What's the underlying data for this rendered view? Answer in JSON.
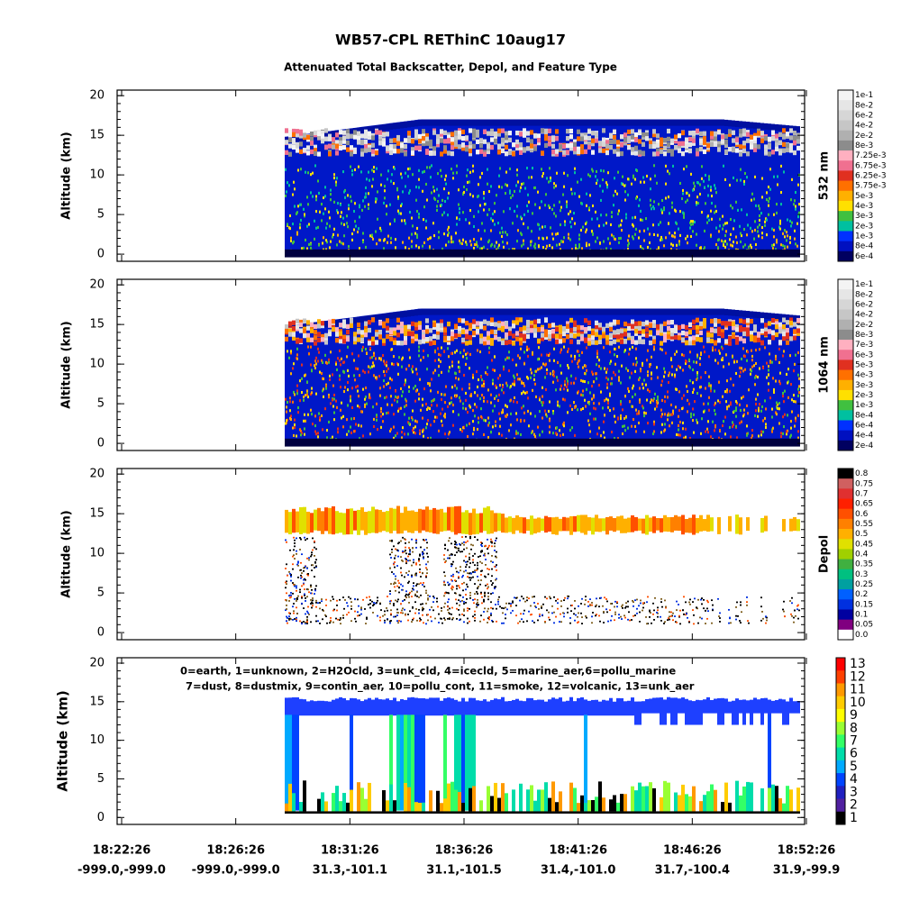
{
  "title": "WB57-CPL REThinC 10aug17",
  "subtitle": "Attenuated Total Backscatter, Depol, and Feature Type",
  "panels": [
    {
      "ylabel": "Altitude (km)",
      "ylim": [
        -0.9,
        20.7
      ],
      "yticks": [
        0,
        5,
        10,
        15,
        20
      ],
      "colorbar": {
        "label": "532 nm",
        "ticks": [
          "1e-1",
          "8e-2",
          "6e-2",
          "4e-2",
          "2e-2",
          "8e-3",
          "7.25e-3",
          "6.75e-3",
          "6.25e-3",
          "5.75e-3",
          "5e-3",
          "4e-3",
          "3e-3",
          "2e-3",
          "1e-3",
          "8e-4",
          "6e-4"
        ],
        "colors": [
          "#f4f4f4",
          "#e6e6e6",
          "#d6d6d6",
          "#c6c6c6",
          "#b0b0b0",
          "#8c8c8c",
          "#ffb0c0",
          "#f07090",
          "#e03020",
          "#ff7000",
          "#ffb000",
          "#ffe000",
          "#40c040",
          "#00c0a0",
          "#0030ff",
          "#0010c0",
          "#000060"
        ]
      }
    },
    {
      "ylabel": "Altitude (km)",
      "ylim": [
        -0.9,
        20.7
      ],
      "yticks": [
        0,
        5,
        10,
        15,
        20
      ],
      "colorbar": {
        "label": "1064 nm",
        "ticks": [
          "1e-1",
          "8e-2",
          "6e-2",
          "4e-2",
          "2e-2",
          "8e-3",
          "7e-3",
          "6e-3",
          "5e-3",
          "4e-3",
          "3e-3",
          "2e-3",
          "1e-3",
          "8e-4",
          "6e-4",
          "4e-4",
          "2e-4"
        ],
        "colors": [
          "#f4f4f4",
          "#e6e6e6",
          "#d6d6d6",
          "#c6c6c6",
          "#b0b0b0",
          "#8c8c8c",
          "#ffb0c0",
          "#f07090",
          "#e03020",
          "#ff7000",
          "#ffb000",
          "#ffe000",
          "#40c040",
          "#00c0a0",
          "#0030ff",
          "#0010c0",
          "#000060"
        ]
      }
    },
    {
      "ylabel": "Altitude (km)",
      "ylim": [
        -0.9,
        20.7
      ],
      "yticks": [
        0,
        5,
        10,
        15,
        20
      ],
      "colorbar": {
        "label": "Depol",
        "ticks": [
          "0.8",
          "0.75",
          "0.7",
          "0.65",
          "0.6",
          "0.55",
          "0.5",
          "0.45",
          "0.4",
          "0.35",
          "0.3",
          "0.25",
          "0.2",
          "0.15",
          "0.1",
          "0.05",
          "0.0"
        ],
        "colors": [
          "#000000",
          "#d06060",
          "#e03030",
          "#ff2000",
          "#ff5000",
          "#ff8000",
          "#ffb000",
          "#e0e000",
          "#a0d000",
          "#40b040",
          "#00c080",
          "#00a0a0",
          "#0060ff",
          "#0030e0",
          "#0000a0",
          "#800080",
          "#ffffff"
        ]
      }
    },
    {
      "ylabel": "Altitude (km)",
      "ylim": [
        -0.9,
        20.7
      ],
      "yticks": [
        0,
        5,
        10,
        15,
        20
      ],
      "legend": [
        "0=earth, 1=unknown, 2=H2Ocld, 3=unk_cld, 4=icecld, 5=marine_aer,6=pollu_marine",
        "7=dust, 8=dustmix, 9=contin_aer, 10=pollu_cont, 11=smoke, 12=volcanic, 13=unk_aer"
      ],
      "colorbar": {
        "ticks": [
          13,
          12,
          11,
          10,
          9,
          8,
          7,
          6,
          5,
          4,
          3,
          2,
          1
        ],
        "colors": [
          "#ff0000",
          "#ff4000",
          "#ff9900",
          "#ffcc00",
          "#ffff00",
          "#99ff33",
          "#33ff66",
          "#00ddaa",
          "#00aaff",
          "#0044ff",
          "#2020c0",
          "#5020a0",
          "#000000"
        ]
      }
    }
  ],
  "x_axis": {
    "ticks": [
      {
        "time": "18:22:26",
        "location": "-999.0,-999.0"
      },
      {
        "time": "18:26:26",
        "location": "-999.0,-999.0"
      },
      {
        "time": "18:31:26",
        "location": "31.3,-101.1"
      },
      {
        "time": "18:36:26",
        "location": "31.1,-101.5"
      },
      {
        "time": "18:41:26",
        "location": "31.4,-101.0"
      },
      {
        "time": "18:46:26",
        "location": "31.7,-100.4"
      },
      {
        "time": "18:52:26",
        "location": "31.9,-99.9"
      }
    ]
  }
}
